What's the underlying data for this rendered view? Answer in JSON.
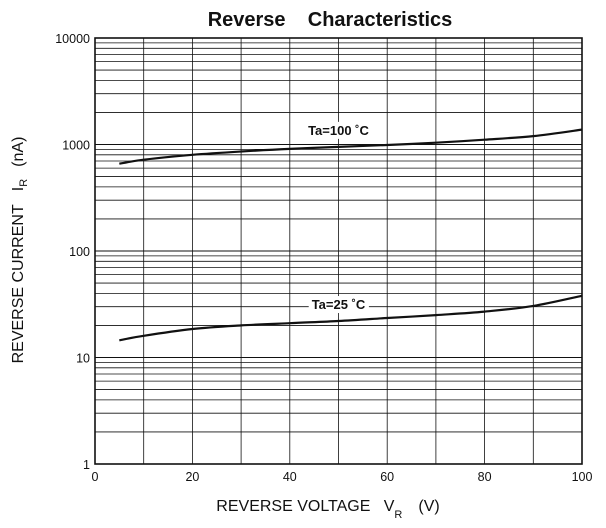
{
  "chart_data": {
    "type": "line",
    "title": "Reverse    Characteristics",
    "xlabel": {
      "main": "REVERSE VOLTAGE   V",
      "sub": "R",
      "unit": "(V)"
    },
    "ylabel": {
      "main": "REVERSE CURRENT   I",
      "sub": "R",
      "unit": "(nA)"
    },
    "xlim": [
      0,
      100
    ],
    "ylim": [
      1,
      10000
    ],
    "yscale": "log",
    "grid": true,
    "x_ticks": [
      0,
      20,
      40,
      60,
      80,
      100
    ],
    "x_tick_labels": [
      "0",
      "20",
      "40",
      "60",
      "80",
      "100"
    ],
    "y_ticks": [
      1,
      10,
      100,
      1000,
      10000
    ],
    "y_tick_labels": [
      "1",
      "10",
      "100",
      "1000",
      "10000"
    ],
    "series": [
      {
        "name": "Ta=100 °C",
        "label": {
          "text": "Ta=100 ˚C",
          "at_x": 50
        },
        "x": [
          5,
          10,
          20,
          30,
          40,
          50,
          60,
          70,
          80,
          90,
          100
        ],
        "y": [
          660,
          720,
          800,
          860,
          910,
          950,
          990,
          1040,
          1110,
          1200,
          1380
        ]
      },
      {
        "name": "Ta=25 °C",
        "label": {
          "text": "Ta=25 ˚C",
          "at_x": 50
        },
        "x": [
          5,
          10,
          20,
          30,
          40,
          50,
          60,
          70,
          80,
          90,
          100
        ],
        "y": [
          14.5,
          16,
          18.5,
          20,
          21,
          22,
          23.5,
          25,
          27,
          30.5,
          38
        ]
      }
    ]
  }
}
